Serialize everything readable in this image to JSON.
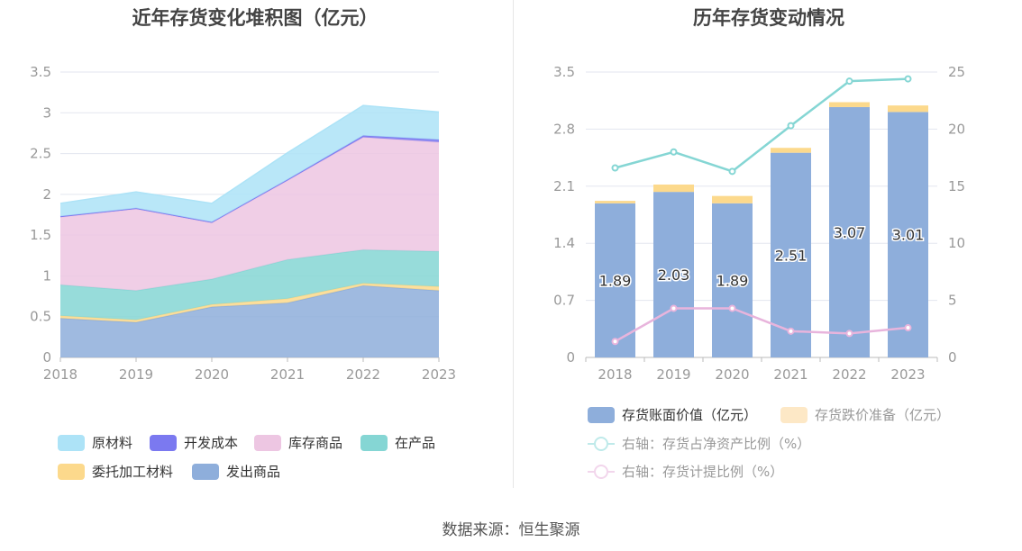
{
  "title_left": "近年存货变化堆积图（亿元）",
  "title_right": "历年存货变动情况",
  "source": "数据来源：恒生聚源",
  "colors": {
    "raw": "#ade3f7",
    "dev": "#7b79f0",
    "goods": "#edc6e2",
    "wip": "#85d6d4",
    "consign": "#fcd98c",
    "shipped": "#8eaedb",
    "bar_main": "#8eaedb",
    "bar_prov": "#fcd98c",
    "line_ratio": "#85d6d4",
    "line_prov": "#e8b4dc",
    "grid": "#e3e6ef",
    "axis_text": "#999999"
  },
  "chart_data": [
    {
      "type": "area",
      "stacked": true,
      "title": "近年存货变化堆积图（亿元）",
      "x": [
        "2018",
        "2019",
        "2020",
        "2021",
        "2022",
        "2023"
      ],
      "ylim": [
        0,
        3.5
      ],
      "yticks": [
        "0",
        "0.5",
        "1",
        "1.5",
        "2",
        "2.5",
        "3",
        "3.5"
      ],
      "series": [
        {
          "name": "发出商品",
          "key": "shipped",
          "values": [
            0.48,
            0.43,
            0.62,
            0.67,
            0.88,
            0.82
          ]
        },
        {
          "name": "委托加工材料",
          "key": "consign",
          "values": [
            0.03,
            0.03,
            0.03,
            0.05,
            0.03,
            0.05
          ]
        },
        {
          "name": "在产品",
          "key": "wip",
          "values": [
            0.38,
            0.36,
            0.31,
            0.48,
            0.41,
            0.43
          ]
        },
        {
          "name": "库存商品",
          "key": "goods",
          "values": [
            0.83,
            1.0,
            0.69,
            0.97,
            1.38,
            1.34
          ]
        },
        {
          "name": "开发成本",
          "key": "dev",
          "values": [
            0.01,
            0.01,
            0.01,
            0.01,
            0.02,
            0.03
          ]
        },
        {
          "name": "原材料",
          "key": "raw",
          "values": [
            0.16,
            0.2,
            0.23,
            0.33,
            0.37,
            0.34
          ]
        }
      ],
      "legend": [
        "原材料",
        "开发成本",
        "库存商品",
        "在产品",
        "委托加工材料",
        "发出商品"
      ],
      "legend_position": "bottom"
    },
    {
      "type": "bar",
      "stacked": true,
      "title": "历年存货变动情况",
      "categories": [
        "2018",
        "2019",
        "2020",
        "2021",
        "2022",
        "2023"
      ],
      "ylim": [
        0,
        3.5
      ],
      "yticks": [
        "0",
        "0.7",
        "1.4",
        "2.1",
        "2.8",
        "3.5"
      ],
      "y2lim": [
        0,
        25
      ],
      "y2ticks": [
        "0",
        "5",
        "10",
        "15",
        "20",
        "25"
      ],
      "series": [
        {
          "name": "存货账面价值（亿元）",
          "values": [
            1.89,
            2.03,
            1.89,
            2.51,
            3.07,
            3.01
          ],
          "labels": [
            "1.89",
            "2.03",
            "1.89",
            "2.51",
            "3.07",
            "3.01"
          ]
        },
        {
          "name": "存货跌价准备（亿元）",
          "values": [
            0.03,
            0.09,
            0.09,
            0.06,
            0.06,
            0.08
          ]
        }
      ],
      "lines": [
        {
          "name": "右轴：存货占净资产比例（%）",
          "axis": "right",
          "values": [
            16.6,
            18.0,
            16.3,
            20.3,
            24.2,
            24.4
          ]
        },
        {
          "name": "右轴：存货计提比例（%）",
          "axis": "right",
          "values": [
            1.4,
            4.3,
            4.3,
            2.3,
            2.1,
            2.6
          ]
        }
      ],
      "legend_position": "bottom"
    }
  ]
}
